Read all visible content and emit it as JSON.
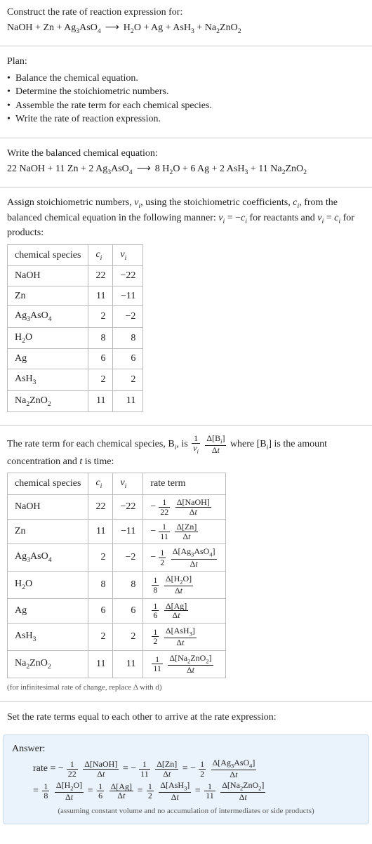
{
  "header": {
    "prompt": "Construct the rate of reaction expression for:",
    "lhs": [
      "NaOH",
      "Zn",
      "Ag3AsO4"
    ],
    "rhs": [
      "H2O",
      "Ag",
      "AsH3",
      "Na2ZnO2"
    ]
  },
  "plan": {
    "title": "Plan:",
    "items": [
      "Balance the chemical equation.",
      "Determine the stoichiometric numbers.",
      "Assemble the rate term for each chemical species.",
      "Write the rate of reaction expression."
    ]
  },
  "balanced": {
    "title": "Write the balanced chemical equation:",
    "lhs": [
      {
        "coef": "22",
        "sp": "NaOH"
      },
      {
        "coef": "11",
        "sp": "Zn"
      },
      {
        "coef": "2",
        "sp": "Ag3AsO4"
      }
    ],
    "rhs": [
      {
        "coef": "8",
        "sp": "H2O"
      },
      {
        "coef": "6",
        "sp": "Ag"
      },
      {
        "coef": "2",
        "sp": "AsH3"
      },
      {
        "coef": "11",
        "sp": "Na2ZnO2"
      }
    ]
  },
  "assign": {
    "text1": "Assign stoichiometric numbers, ",
    "nu": "ν",
    "text2": ", using the stoichiometric coefficients, ",
    "c": "c",
    "text3": ", from the balanced chemical equation in the following manner: ",
    "rel_react": " for reactants and ",
    "rel_prod": " for products:"
  },
  "table1": {
    "headers": [
      "chemical species",
      "cᵢ",
      "νᵢ"
    ],
    "rows": [
      {
        "sp": "NaOH",
        "c": "22",
        "nu": "−22"
      },
      {
        "sp": "Zn",
        "c": "11",
        "nu": "−11"
      },
      {
        "sp": "Ag3AsO4",
        "c": "2",
        "nu": "−2"
      },
      {
        "sp": "H2O",
        "c": "8",
        "nu": "8"
      },
      {
        "sp": "Ag",
        "c": "6",
        "nu": "6"
      },
      {
        "sp": "AsH3",
        "c": "2",
        "nu": "2"
      },
      {
        "sp": "Na2ZnO2",
        "c": "11",
        "nu": "11"
      }
    ]
  },
  "rateterm_intro": {
    "t1": "The rate term for each chemical species, B",
    "t2": ", is ",
    "t3": " where [B",
    "t4": "] is the amount concentration and ",
    "tvar": "t",
    "t5": " is time:"
  },
  "table2": {
    "headers": [
      "chemical species",
      "cᵢ",
      "νᵢ",
      "rate term"
    ],
    "rows": [
      {
        "sp": "NaOH",
        "c": "22",
        "nu": "−22",
        "neg": true,
        "den": "22",
        "conc": "NaOH"
      },
      {
        "sp": "Zn",
        "c": "11",
        "nu": "−11",
        "neg": true,
        "den": "11",
        "conc": "Zn"
      },
      {
        "sp": "Ag3AsO4",
        "c": "2",
        "nu": "−2",
        "neg": true,
        "den": "2",
        "conc": "Ag3AsO4"
      },
      {
        "sp": "H2O",
        "c": "8",
        "nu": "8",
        "neg": false,
        "den": "8",
        "conc": "H2O"
      },
      {
        "sp": "Ag",
        "c": "6",
        "nu": "6",
        "neg": false,
        "den": "6",
        "conc": "Ag"
      },
      {
        "sp": "AsH3",
        "c": "2",
        "nu": "2",
        "neg": false,
        "den": "2",
        "conc": "AsH3"
      },
      {
        "sp": "Na2ZnO2",
        "c": "11",
        "nu": "11",
        "neg": false,
        "den": "11",
        "conc": "Na2ZnO2"
      }
    ],
    "caption": "(for infinitesimal rate of change, replace Δ with d)"
  },
  "setline": "Set the rate terms equal to each other to arrive at the rate expression:",
  "answer": {
    "label": "Answer:",
    "lead": "rate = ",
    "terms": [
      {
        "neg": true,
        "den": "22",
        "conc": "NaOH"
      },
      {
        "neg": true,
        "den": "11",
        "conc": "Zn"
      },
      {
        "neg": true,
        "den": "2",
        "conc": "Ag3AsO4"
      },
      {
        "neg": false,
        "den": "8",
        "conc": "H2O"
      },
      {
        "neg": false,
        "den": "6",
        "conc": "Ag"
      },
      {
        "neg": false,
        "den": "2",
        "conc": "AsH3"
      },
      {
        "neg": false,
        "den": "11",
        "conc": "Na2ZnO2"
      }
    ],
    "caption": "(assuming constant volume and no accumulation of intermediates or side products)"
  },
  "glyphs": {
    "arrow": "⟶",
    "delta": "Δ",
    "eq": " = ",
    "plus": " + ",
    "minus": "−",
    "i": "i"
  }
}
